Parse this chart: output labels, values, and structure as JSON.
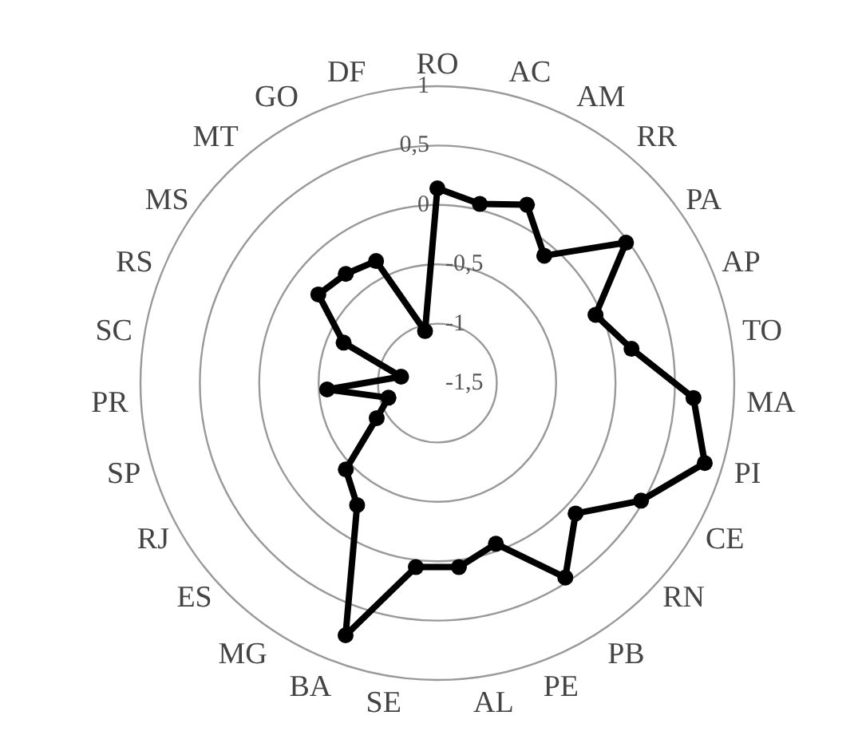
{
  "chart_data": {
    "type": "radar",
    "categories": [
      "RO",
      "AC",
      "AM",
      "RR",
      "PA",
      "AP",
      "TO",
      "MA",
      "PI",
      "CE",
      "RN",
      "PB",
      "PE",
      "AL",
      "SE",
      "BA",
      "MG",
      "ES",
      "RJ",
      "SP",
      "PR",
      "SC",
      "RS",
      "MS",
      "MT",
      "GO",
      "DF"
    ],
    "series": [
      {
        "color": "#000000",
        "values": [
          0.14,
          0.05,
          0.18,
          -0.1,
          0.48,
          -0.05,
          0.16,
          0.66,
          0.85,
          0.48,
          0.1,
          0.46,
          -0.06,
          0.06,
          0.06,
          0.76,
          -0.27,
          -0.44,
          -0.91,
          -1.07,
          -0.57,
          -1.19,
          -0.64,
          -0.25,
          -0.3,
          -0.35,
          -1.05
        ]
      }
    ],
    "ylim": [
      -1.5,
      1
    ],
    "yticks": [
      {
        "value": -1.5,
        "label": "-1,5"
      },
      -1,
      {
        "value": -0.5,
        "label": "-0,5"
      },
      0,
      {
        "value": 0.5,
        "label": "0,5"
      },
      1
    ],
    "grid": true,
    "marker": "circle",
    "legend": false
  }
}
